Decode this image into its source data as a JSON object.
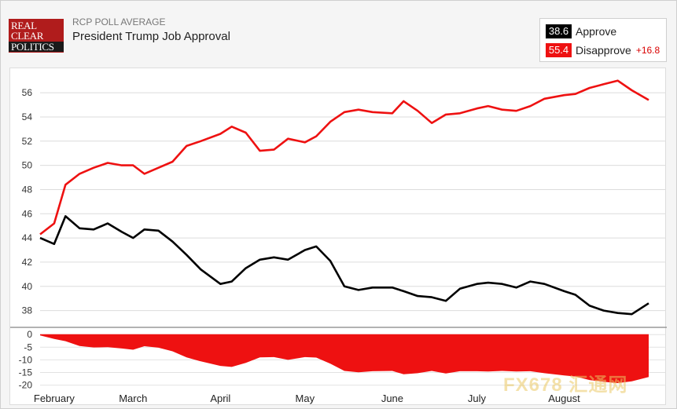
{
  "header": {
    "logo_lines": [
      "REAL",
      "CLEAR",
      "POLITICS"
    ],
    "eyebrow": "RCP POLL AVERAGE",
    "title": "President Trump Job Approval"
  },
  "legend": {
    "approve": {
      "value": "38.6",
      "label": "Approve",
      "color": "#000000"
    },
    "disapprove": {
      "value": "55.4",
      "label": "Disapprove",
      "color": "#ee1111"
    },
    "spread": "+16.8"
  },
  "watermark": "FX678 汇通网",
  "chart_data": {
    "type": "line",
    "x_start": "2017-01-27",
    "x_end": "2017-08-31",
    "ylim": [
      37,
      57.5
    ],
    "yticks": [
      38,
      40,
      42,
      44,
      46,
      48,
      50,
      52,
      54,
      56
    ],
    "spread_ylim": [
      -22,
      1
    ],
    "spread_ticks": [
      0,
      -5,
      -10,
      -15,
      -20
    ],
    "spread_tick_labels": [
      "0",
      "-5",
      "-10",
      "-15",
      "-20"
    ],
    "month_labels": [
      {
        "label": "February",
        "date": "2017-02-01"
      },
      {
        "label": "March",
        "date": "2017-03-01"
      },
      {
        "label": "April",
        "date": "2017-04-01"
      },
      {
        "label": "May",
        "date": "2017-05-01"
      },
      {
        "label": "June",
        "date": "2017-06-01"
      },
      {
        "label": "July",
        "date": "2017-07-01"
      },
      {
        "label": "August",
        "date": "2017-08-01"
      }
    ],
    "x": [
      "2017-01-27",
      "2017-02-01",
      "2017-02-05",
      "2017-02-10",
      "2017-02-15",
      "2017-02-20",
      "2017-02-25",
      "2017-03-01",
      "2017-03-05",
      "2017-03-10",
      "2017-03-15",
      "2017-03-20",
      "2017-03-25",
      "2017-04-01",
      "2017-04-05",
      "2017-04-10",
      "2017-04-15",
      "2017-04-20",
      "2017-04-25",
      "2017-05-01",
      "2017-05-05",
      "2017-05-10",
      "2017-05-15",
      "2017-05-20",
      "2017-05-25",
      "2017-06-01",
      "2017-06-05",
      "2017-06-10",
      "2017-06-15",
      "2017-06-20",
      "2017-06-25",
      "2017-07-01",
      "2017-07-05",
      "2017-07-10",
      "2017-07-15",
      "2017-07-20",
      "2017-07-25",
      "2017-08-01",
      "2017-08-05",
      "2017-08-10",
      "2017-08-15",
      "2017-08-20",
      "2017-08-25",
      "2017-08-31"
    ],
    "series": [
      {
        "name": "Approve",
        "color": "#000000",
        "values": [
          44.0,
          43.5,
          45.8,
          44.8,
          44.7,
          45.2,
          44.5,
          44.0,
          44.7,
          44.6,
          43.7,
          42.6,
          41.4,
          40.2,
          40.4,
          41.5,
          42.2,
          42.4,
          42.2,
          43.0,
          43.3,
          42.1,
          40.0,
          39.7,
          39.9,
          39.9,
          39.6,
          39.2,
          39.1,
          38.8,
          39.8,
          40.2,
          40.3,
          40.2,
          39.9,
          40.4,
          40.2,
          39.6,
          39.3,
          38.4,
          38.0,
          37.8,
          37.7,
          38.6
        ]
      },
      {
        "name": "Disapprove",
        "color": "#ee1111",
        "values": [
          44.3,
          45.2,
          48.4,
          49.3,
          49.8,
          50.2,
          50.0,
          50.0,
          49.3,
          49.8,
          50.3,
          51.6,
          52.0,
          52.6,
          53.2,
          52.7,
          51.2,
          51.3,
          52.2,
          51.9,
          52.4,
          53.6,
          54.4,
          54.6,
          54.4,
          54.3,
          55.3,
          54.5,
          53.5,
          54.2,
          54.3,
          54.7,
          54.9,
          54.6,
          54.5,
          54.9,
          55.5,
          55.8,
          55.9,
          56.4,
          56.7,
          57.0,
          56.2,
          55.4
        ]
      },
      {
        "name": "Spread",
        "color": "#ee1111",
        "values": [
          -0.3,
          -1.7,
          -2.6,
          -4.5,
          -5.1,
          -5.0,
          -5.5,
          -6.0,
          -4.6,
          -5.2,
          -6.6,
          -9.0,
          -10.6,
          -12.4,
          -12.8,
          -11.2,
          -9.0,
          -8.9,
          -10.0,
          -8.9,
          -9.1,
          -11.5,
          -14.4,
          -14.9,
          -14.5,
          -14.4,
          -15.7,
          -15.3,
          -14.4,
          -15.4,
          -14.5,
          -14.5,
          -14.6,
          -14.4,
          -14.6,
          -14.5,
          -15.3,
          -16.2,
          -16.6,
          -18.0,
          -18.7,
          -19.2,
          -18.5,
          -16.8
        ]
      }
    ]
  }
}
